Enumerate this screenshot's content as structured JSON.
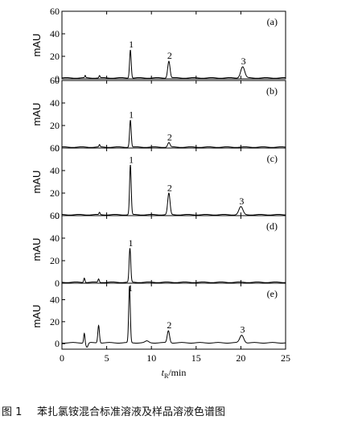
{
  "chart_data": {
    "type": "line",
    "x_range": [
      0,
      25
    ],
    "x_ticks": [
      0,
      5,
      10,
      15,
      20,
      25
    ],
    "xlabel_main": "t",
    "xlabel_sub": "R",
    "xlabel_unit": "/min",
    "ylabel": "mAU",
    "grid": false,
    "panels": [
      {
        "label": "(a)",
        "ylim": [
          0,
          60
        ],
        "y_ticks": [
          0,
          20,
          40,
          60
        ],
        "peaks": [
          {
            "t": 2.6,
            "h": 2,
            "w": 0.05
          },
          {
            "t": 4.2,
            "h": 2,
            "w": 0.06
          },
          {
            "t": 7.65,
            "h": 25,
            "w": 0.09,
            "label": "1"
          },
          {
            "t": 11.95,
            "h": 15,
            "w": 0.13,
            "label": "2"
          },
          {
            "t": 20.2,
            "h": 10,
            "w": 0.22,
            "label": "3"
          }
        ]
      },
      {
        "label": "(b)",
        "ylim": [
          0,
          60
        ],
        "y_ticks": [
          0,
          20,
          40,
          60
        ],
        "peaks": [
          {
            "t": 4.2,
            "h": 2,
            "w": 0.06
          },
          {
            "t": 7.65,
            "h": 24,
            "w": 0.09,
            "label": "1"
          },
          {
            "t": 11.95,
            "h": 4,
            "w": 0.13,
            "label": "2"
          }
        ]
      },
      {
        "label": "(c)",
        "ylim": [
          0,
          60
        ],
        "y_ticks": [
          0,
          20,
          40,
          60
        ],
        "peaks": [
          {
            "t": 4.2,
            "h": 2,
            "w": 0.06
          },
          {
            "t": 7.65,
            "h": 44,
            "w": 0.09,
            "label": "1"
          },
          {
            "t": 11.95,
            "h": 19,
            "w": 0.13,
            "label": "2"
          },
          {
            "t": 20.0,
            "h": 7,
            "w": 0.22,
            "label": "3"
          }
        ]
      },
      {
        "label": "(d)",
        "ylim": [
          0,
          60
        ],
        "y_ticks": [
          0,
          20,
          40,
          60
        ],
        "peaks": [
          {
            "t": 2.5,
            "h": 4,
            "w": 0.07
          },
          {
            "t": 4.1,
            "h": 3,
            "w": 0.07
          },
          {
            "t": 7.6,
            "h": 30,
            "w": 0.09,
            "label": "1"
          }
        ]
      },
      {
        "label": "(e)",
        "ylim": [
          -5,
          55
        ],
        "y_ticks": [
          0,
          20,
          40
        ],
        "peaks": [
          {
            "t": 2.5,
            "h": 9,
            "w": 0.07
          },
          {
            "t": 2.8,
            "h": -4,
            "w": 0.12
          },
          {
            "t": 4.1,
            "h": 16,
            "w": 0.09
          },
          {
            "t": 7.55,
            "h": 51,
            "w": 0.09,
            "label": "1"
          },
          {
            "t": 9.5,
            "h": 1.5,
            "w": 0.2
          },
          {
            "t": 11.9,
            "h": 11,
            "w": 0.13,
            "label": "2"
          },
          {
            "t": 20.1,
            "h": 7,
            "w": 0.22,
            "label": "3"
          }
        ]
      }
    ]
  },
  "caption": {
    "number": "图 1",
    "text": "苯扎氯铵混合标准溶液及样品溶液色谱图"
  }
}
